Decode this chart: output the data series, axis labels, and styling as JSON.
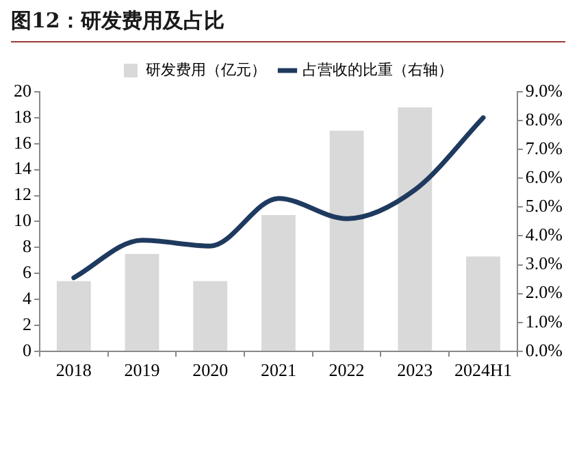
{
  "chart_data": {
    "type": "bar",
    "title": "图12：研发费用及占比",
    "categories": [
      "2018",
      "2019",
      "2020",
      "2021",
      "2022",
      "2023",
      "2024H1"
    ],
    "series": [
      {
        "name": "研发费用（亿元）",
        "color": "#d9d9d9",
        "values": [
          5.4,
          7.5,
          5.4,
          10.5,
          17.0,
          18.8,
          7.3
        ]
      },
      {
        "name": "占营收的比重（右轴）",
        "type": "line",
        "axis": "y2",
        "color": "#1f3a5f",
        "values": [
          2.55,
          3.85,
          3.65,
          5.3,
          4.6,
          5.6,
          8.1
        ]
      }
    ],
    "ylim": [
      0,
      20
    ],
    "yticks": [
      0,
      2,
      4,
      6,
      8,
      10,
      12,
      14,
      16,
      18,
      20
    ],
    "y2lim": [
      0,
      9
    ],
    "y2ticks": [
      {
        "value": 0,
        "label": "0.0%"
      },
      {
        "value": 1,
        "label": "1.0%"
      },
      {
        "value": 2,
        "label": "2.0%"
      },
      {
        "value": 3,
        "label": "3.0%"
      },
      {
        "value": 4,
        "label": "4.0%"
      },
      {
        "value": 5,
        "label": "5.0%"
      },
      {
        "value": 6,
        "label": "6.0%"
      },
      {
        "value": 7,
        "label": "7.0%"
      },
      {
        "value": 8,
        "label": "8.0%"
      },
      {
        "value": 9,
        "label": "9.0%"
      }
    ],
    "grid": false,
    "legend": "top",
    "marker": "none",
    "line_style": "solid"
  }
}
